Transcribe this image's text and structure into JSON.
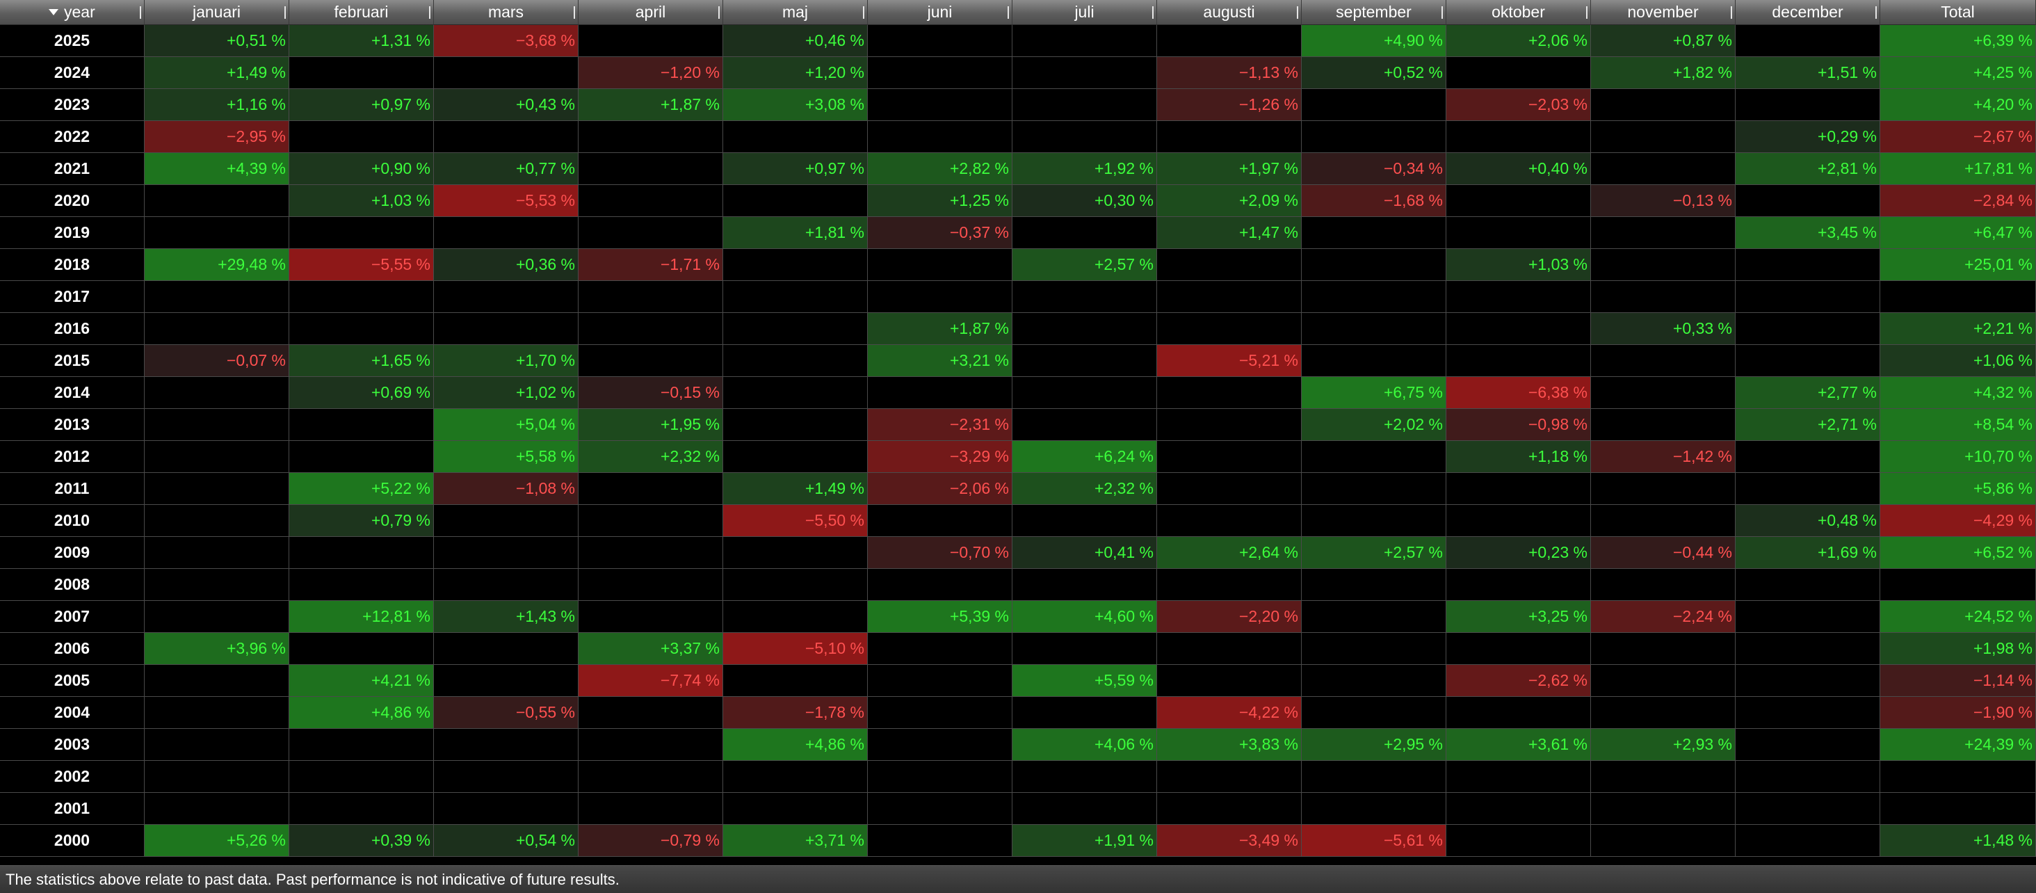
{
  "columns": [
    "year",
    "januari",
    "februari",
    "mars",
    "april",
    "maj",
    "juni",
    "juli",
    "augusti",
    "september",
    "oktober",
    "november",
    "december",
    "Total"
  ],
  "colors": {
    "positive_text": "#3cff3c",
    "negative_text": "#ff5050",
    "positive_bg_max": "#1e7a1e",
    "negative_bg_max": "#8e1818"
  },
  "rows": [
    {
      "year": "2025",
      "cells": [
        "+0,51 %",
        "+1,31 %",
        "−3,68 %",
        "",
        "+0,46 %",
        "",
        "",
        "",
        "+4,90 %",
        "+2,06 %",
        "+0,87 %",
        "",
        "+6,39 %"
      ]
    },
    {
      "year": "2024",
      "cells": [
        "+1,49 %",
        "",
        "",
        "−1,20 %",
        "+1,20 %",
        "",
        "",
        "−1,13 %",
        "+0,52 %",
        "",
        "+1,82 %",
        "+1,51 %",
        "+4,25 %"
      ]
    },
    {
      "year": "2023",
      "cells": [
        "+1,16 %",
        "+0,97 %",
        "+0,43 %",
        "+1,87 %",
        "+3,08 %",
        "",
        "",
        "−1,26 %",
        "",
        "−2,03 %",
        "",
        "",
        "+4,20 %"
      ]
    },
    {
      "year": "2022",
      "cells": [
        "−2,95 %",
        "",
        "",
        "",
        "",
        "",
        "",
        "",
        "",
        "",
        "",
        "+0,29 %",
        "−2,67 %"
      ]
    },
    {
      "year": "2021",
      "cells": [
        "+4,39 %",
        "+0,90 %",
        "+0,77 %",
        "",
        "+0,97 %",
        "+2,82 %",
        "+1,92 %",
        "+1,97 %",
        "−0,34 %",
        "+0,40 %",
        "",
        "+2,81 %",
        "+17,81 %"
      ]
    },
    {
      "year": "2020",
      "cells": [
        "",
        "+1,03 %",
        "−5,53 %",
        "",
        "",
        "+1,25 %",
        "+0,30 %",
        "+2,09 %",
        "−1,68 %",
        "",
        "−0,13 %",
        "",
        "−2,84 %"
      ]
    },
    {
      "year": "2019",
      "cells": [
        "",
        "",
        "",
        "",
        "+1,81 %",
        "−0,37 %",
        "",
        "+1,47 %",
        "",
        "",
        "",
        "+3,45 %",
        "+6,47 %"
      ]
    },
    {
      "year": "2018",
      "cells": [
        "+29,48 %",
        "−5,55 %",
        "+0,36 %",
        "−1,71 %",
        "",
        "",
        "+2,57 %",
        "",
        "",
        "+1,03 %",
        "",
        "",
        "+25,01 %"
      ]
    },
    {
      "year": "2017",
      "cells": [
        "",
        "",
        "",
        "",
        "",
        "",
        "",
        "",
        "",
        "",
        "",
        "",
        ""
      ]
    },
    {
      "year": "2016",
      "cells": [
        "",
        "",
        "",
        "",
        "",
        "+1,87 %",
        "",
        "",
        "",
        "",
        "+0,33 %",
        "",
        "+2,21 %"
      ]
    },
    {
      "year": "2015",
      "cells": [
        "−0,07 %",
        "+1,65 %",
        "+1,70 %",
        "",
        "",
        "+3,21 %",
        "",
        "−5,21 %",
        "",
        "",
        "",
        "",
        "+1,06 %"
      ]
    },
    {
      "year": "2014",
      "cells": [
        "",
        "+0,69 %",
        "+1,02 %",
        "−0,15 %",
        "",
        "",
        "",
        "",
        "+6,75 %",
        "−6,38 %",
        "",
        "+2,77 %",
        "+4,32 %"
      ]
    },
    {
      "year": "2013",
      "cells": [
        "",
        "",
        "+5,04 %",
        "+1,95 %",
        "",
        "−2,31 %",
        "",
        "",
        "+2,02 %",
        "−0,98 %",
        "",
        "+2,71 %",
        "+8,54 %"
      ]
    },
    {
      "year": "2012",
      "cells": [
        "",
        "",
        "+5,58 %",
        "+2,32 %",
        "",
        "−3,29 %",
        "+6,24 %",
        "",
        "",
        "+1,18 %",
        "−1,42 %",
        "",
        "+10,70 %"
      ]
    },
    {
      "year": "2011",
      "cells": [
        "",
        "+5,22 %",
        "−1,08 %",
        "",
        "+1,49 %",
        "−2,06 %",
        "+2,32 %",
        "",
        "",
        "",
        "",
        "",
        "+5,86 %"
      ]
    },
    {
      "year": "2010",
      "cells": [
        "",
        "+0,79 %",
        "",
        "",
        "−5,50 %",
        "",
        "",
        "",
        "",
        "",
        "",
        "+0,48 %",
        "−4,29 %"
      ]
    },
    {
      "year": "2009",
      "cells": [
        "",
        "",
        "",
        "",
        "",
        "−0,70 %",
        "+0,41 %",
        "+2,64 %",
        "+2,57 %",
        "+0,23 %",
        "−0,44 %",
        "+1,69 %",
        "+6,52 %"
      ]
    },
    {
      "year": "2008",
      "cells": [
        "",
        "",
        "",
        "",
        "",
        "",
        "",
        "",
        "",
        "",
        "",
        "",
        ""
      ]
    },
    {
      "year": "2007",
      "cells": [
        "",
        "+12,81 %",
        "+1,43 %",
        "",
        "",
        "+5,39 %",
        "+4,60 %",
        "−2,20 %",
        "",
        "+3,25 %",
        "−2,24 %",
        "",
        "+24,52 %"
      ]
    },
    {
      "year": "2006",
      "cells": [
        "+3,96 %",
        "",
        "",
        "+3,37 %",
        "−5,10 %",
        "",
        "",
        "",
        "",
        "",
        "",
        "",
        "+1,98 %"
      ]
    },
    {
      "year": "2005",
      "cells": [
        "",
        "+4,21 %",
        "",
        "−7,74 %",
        "",
        "",
        "+5,59 %",
        "",
        "",
        "−2,62 %",
        "",
        "",
        "−1,14 %"
      ]
    },
    {
      "year": "2004",
      "cells": [
        "",
        "+4,86 %",
        "−0,55 %",
        "",
        "−1,78 %",
        "",
        "",
        "−4,22 %",
        "",
        "",
        "",
        "",
        "−1,90 %"
      ]
    },
    {
      "year": "2003",
      "cells": [
        "",
        "",
        "",
        "",
        "+4,86 %",
        "",
        "+4,06 %",
        "+3,83 %",
        "+2,95 %",
        "+3,61 %",
        "+2,93 %",
        "",
        "+24,39 %"
      ]
    },
    {
      "year": "2002",
      "cells": [
        "",
        "",
        "",
        "",
        "",
        "",
        "",
        "",
        "",
        "",
        "",
        "",
        ""
      ]
    },
    {
      "year": "2001",
      "cells": [
        "",
        "",
        "",
        "",
        "",
        "",
        "",
        "",
        "",
        "",
        "",
        "",
        ""
      ]
    },
    {
      "year": "2000",
      "cells": [
        "+5,26 %",
        "+0,39 %",
        "+0,54 %",
        "−0,79 %",
        "+3,71 %",
        "",
        "+1,91 %",
        "−3,49 %",
        "−5,61 %",
        "",
        "",
        "",
        "+1,48 %"
      ]
    }
  ],
  "footer": "The statistics above relate to past data. Past performance is not indicative of future results."
}
